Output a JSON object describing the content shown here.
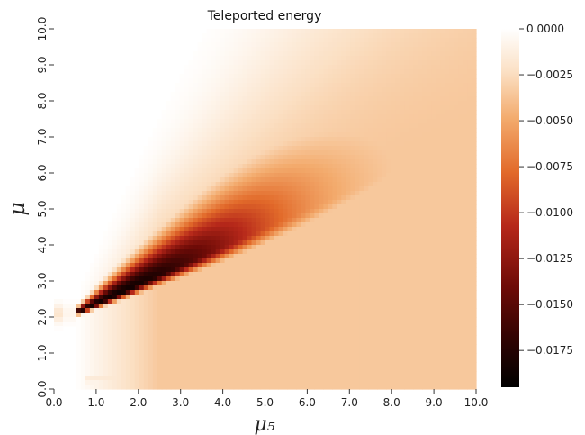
{
  "chart_data": {
    "type": "heatmap",
    "title": "Teleported energy",
    "xlabel": "μ₅",
    "ylabel": "μ",
    "xlim": [
      0,
      10
    ],
    "ylim": [
      0,
      10
    ],
    "x_ticks": [
      "0.0",
      "1.0",
      "2.0",
      "3.0",
      "4.0",
      "5.0",
      "6.0",
      "7.0",
      "8.0",
      "9.0",
      "10.0"
    ],
    "y_ticks": [
      "0.0",
      "1.0",
      "2.0",
      "3.0",
      "4.0",
      "5.0",
      "6.0",
      "7.0",
      "8.0",
      "9.0",
      "10.0"
    ],
    "colorbar": {
      "range": [
        -0.0195,
        0.0
      ],
      "ticks": [
        "0.0000",
        "−0.0025",
        "−0.0050",
        "−0.0075",
        "−0.0100",
        "−0.0125",
        "−0.0150",
        "−0.0175"
      ],
      "tick_values": [
        0.0,
        -0.0025,
        -0.005,
        -0.0075,
        -0.01,
        -0.0125,
        -0.015,
        -0.0175
      ],
      "colormap": "gist_heat (white = 0, black = minimum)"
    },
    "ridge": {
      "description": "band of negative energy along μ ≈ 2.1 + 0.52·(μ₅ − 0.5), minimum near (μ₅ ≈ 1.8, μ ≈ 2.5)",
      "min_value": -0.0195,
      "points": [
        {
          "mu5": 0.5,
          "mu": 2.1
        },
        {
          "mu5": 1.8,
          "mu": 2.5
        },
        {
          "mu5": 4.0,
          "mu": 3.9
        },
        {
          "mu5": 7.0,
          "mu": 5.5
        },
        {
          "mu5": 10.0,
          "mu": 7.2
        }
      ]
    },
    "grid": false,
    "legend": "colorbar right"
  }
}
